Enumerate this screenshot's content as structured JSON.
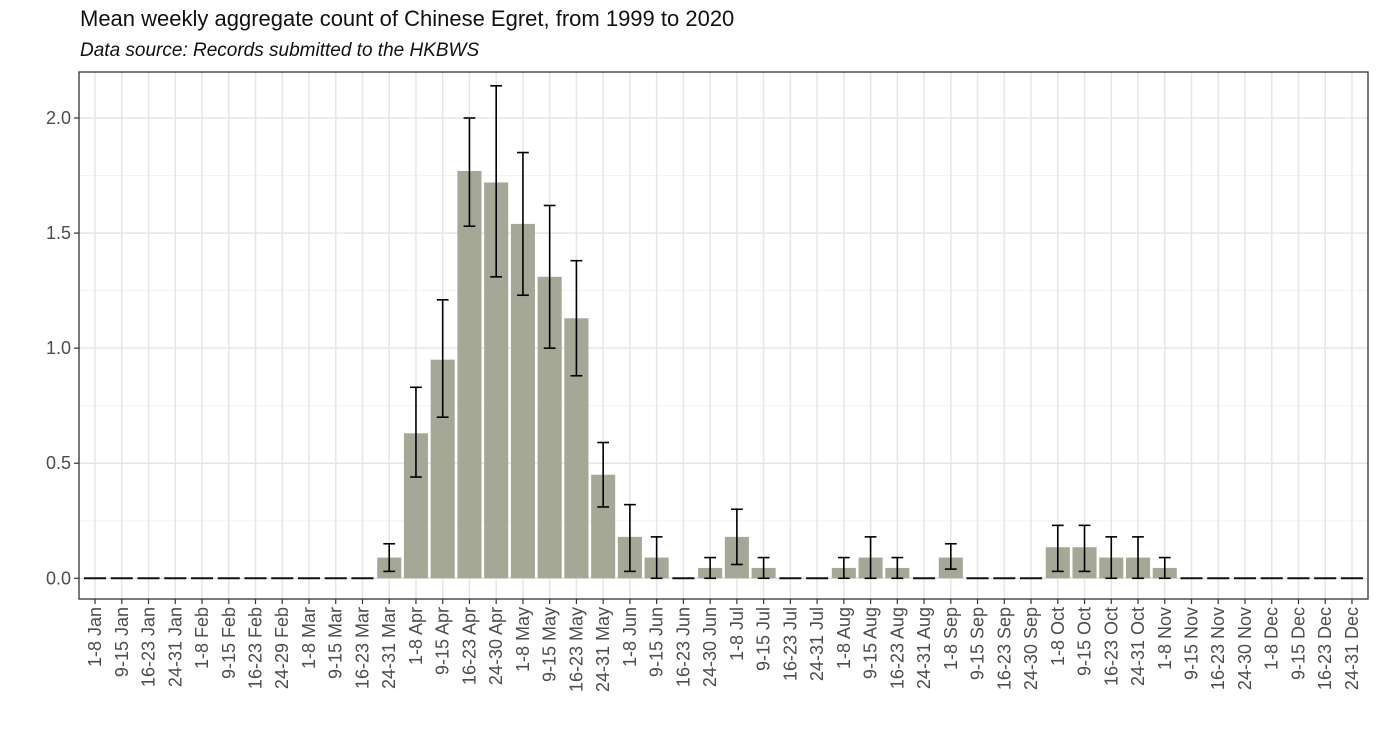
{
  "chart_data": {
    "type": "bar",
    "title": "Mean weekly aggregate count of Chinese Egret, from 1999 to 2020",
    "subtitle": "Data source: Records submitted to the HKBWS",
    "xlabel": "",
    "ylabel": "",
    "ylim": [
      -0.09,
      2.2
    ],
    "yticks": [
      "0.0",
      "0.5",
      "1.0",
      "1.5",
      "2.0"
    ],
    "categories": [
      "1-8 Jan",
      "9-15 Jan",
      "16-23 Jan",
      "24-31 Jan",
      "1-8 Feb",
      "9-15 Feb",
      "16-23 Feb",
      "24-29 Feb",
      "1-8 Mar",
      "9-15 Mar",
      "16-23 Mar",
      "24-31 Mar",
      "1-8 Apr",
      "9-15 Apr",
      "16-23 Apr",
      "24-30 Apr",
      "1-8 May",
      "9-15 May",
      "16-23 May",
      "24-31 May",
      "1-8 Jun",
      "9-15 Jun",
      "16-23 Jun",
      "24-30 Jun",
      "1-8 Jul",
      "9-15 Jul",
      "16-23 Jul",
      "24-31 Jul",
      "1-8 Aug",
      "9-15 Aug",
      "16-23 Aug",
      "24-31 Aug",
      "1-8 Sep",
      "9-15 Sep",
      "16-23 Sep",
      "24-30 Sep",
      "1-8 Oct",
      "9-15 Oct",
      "16-23 Oct",
      "24-31 Oct",
      "1-8 Nov",
      "9-15 Nov",
      "16-23 Nov",
      "24-30 Nov",
      "1-8 Dec",
      "9-15 Dec",
      "16-23 Dec",
      "24-31 Dec"
    ],
    "values": [
      0,
      0,
      0,
      0,
      0,
      0,
      0,
      0,
      0,
      0,
      0,
      0.09,
      0.63,
      0.95,
      1.77,
      1.72,
      1.54,
      1.31,
      1.13,
      0.45,
      0.18,
      0.09,
      0,
      0.045,
      0.18,
      0.045,
      0,
      0,
      0.045,
      0.09,
      0.045,
      0,
      0.09,
      0,
      0,
      0,
      0.135,
      0.135,
      0.09,
      0.09,
      0.045,
      0,
      0,
      0,
      0,
      0,
      0,
      0
    ],
    "err_low": [
      0,
      0,
      0,
      0,
      0,
      0,
      0,
      0,
      0,
      0,
      0,
      0.03,
      0.44,
      0.7,
      1.53,
      1.31,
      1.23,
      1.0,
      0.88,
      0.31,
      0.03,
      0,
      0,
      0,
      0.06,
      0,
      0,
      0,
      0,
      0,
      0,
      0,
      0.04,
      0,
      0,
      0,
      0.03,
      0.03,
      0,
      0,
      0,
      0,
      0,
      0,
      0,
      0,
      0,
      0
    ],
    "err_high": [
      0,
      0,
      0,
      0,
      0,
      0,
      0,
      0,
      0,
      0,
      0,
      0.15,
      0.83,
      1.21,
      2.0,
      2.14,
      1.85,
      1.62,
      1.38,
      0.59,
      0.32,
      0.18,
      0,
      0.09,
      0.3,
      0.09,
      0,
      0,
      0.09,
      0.18,
      0.09,
      0,
      0.15,
      0,
      0,
      0,
      0.23,
      0.23,
      0.18,
      0.18,
      0.09,
      0,
      0,
      0,
      0,
      0,
      0,
      0
    ],
    "grid": true,
    "legend": "none",
    "colors": {
      "bar": "#a5a797",
      "panel_border": "#333333",
      "grid_major": "#e6e6e6",
      "grid_minor": "#f2f2f2",
      "error_bar": "#000000"
    }
  }
}
